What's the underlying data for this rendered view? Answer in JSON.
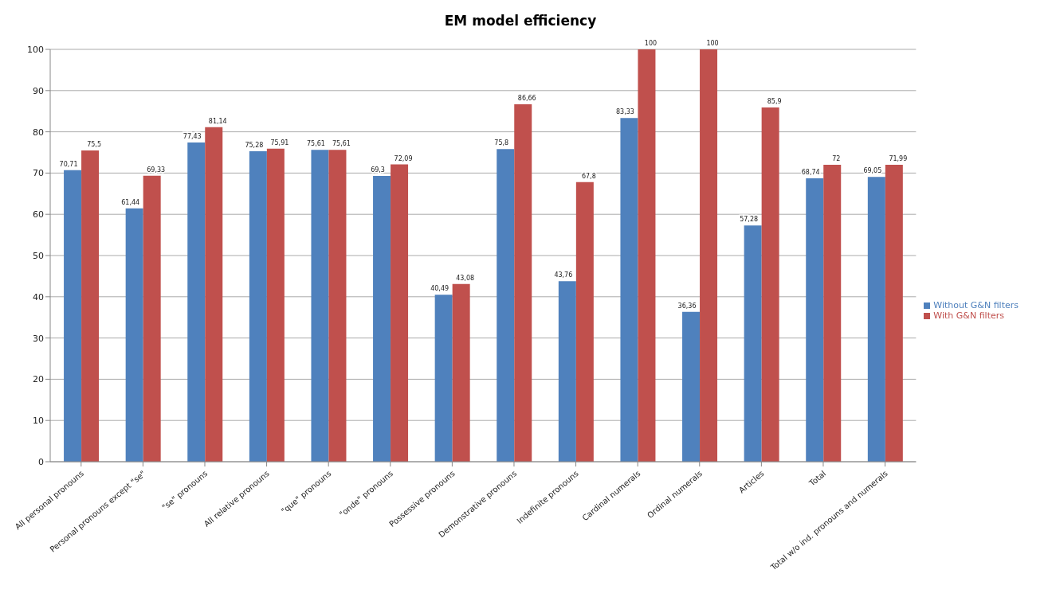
{
  "chart_data": {
    "type": "bar",
    "title": "EM model efficiency",
    "categories": [
      "All personal pronouns",
      "Personal pronouns except \"se\"",
      "\"se\" pronouns",
      "All relative pronouns",
      "\"que\" pronouns",
      "\"onde\" pronouns",
      "Possessive pronouns",
      "Demonstrative pronouns",
      "Indefinite pronouns",
      "Cardinal numerals",
      "Ordinal numerals",
      "Articles",
      "Total",
      "Total w/o ind. pronouns and numerals"
    ],
    "series": [
      {
        "name": "Without G&N filters",
        "color": "#4f81bd",
        "values": [
          70.71,
          61.44,
          77.43,
          75.28,
          75.61,
          69.3,
          40.49,
          75.8,
          43.76,
          83.33,
          36.36,
          57.28,
          68.74,
          69.05
        ],
        "value_labels": [
          "70,71",
          "61,44",
          "77,43",
          "75,28",
          "75,61",
          "69,3",
          "40,49",
          "75,8",
          "43,76",
          "83,33",
          "36,36",
          "57,28",
          "68,74",
          "69,05"
        ]
      },
      {
        "name": "With G&N filters",
        "color": "#c0504d",
        "values": [
          75.5,
          69.33,
          81.14,
          75.91,
          75.61,
          72.09,
          43.08,
          86.66,
          67.8,
          100,
          100,
          85.9,
          72,
          71.99
        ],
        "value_labels": [
          "75,5",
          "69,33",
          "81,14",
          "75,91",
          "75,61",
          "72,09",
          "43,08",
          "86,66",
          "67,8",
          "100",
          "100",
          "85,9",
          "72",
          "71,99"
        ]
      }
    ],
    "ylim": [
      0,
      100
    ],
    "yticks": [
      0,
      10,
      20,
      30,
      40,
      50,
      60,
      70,
      80,
      90,
      100
    ],
    "grid": "y",
    "legend": "right"
  }
}
